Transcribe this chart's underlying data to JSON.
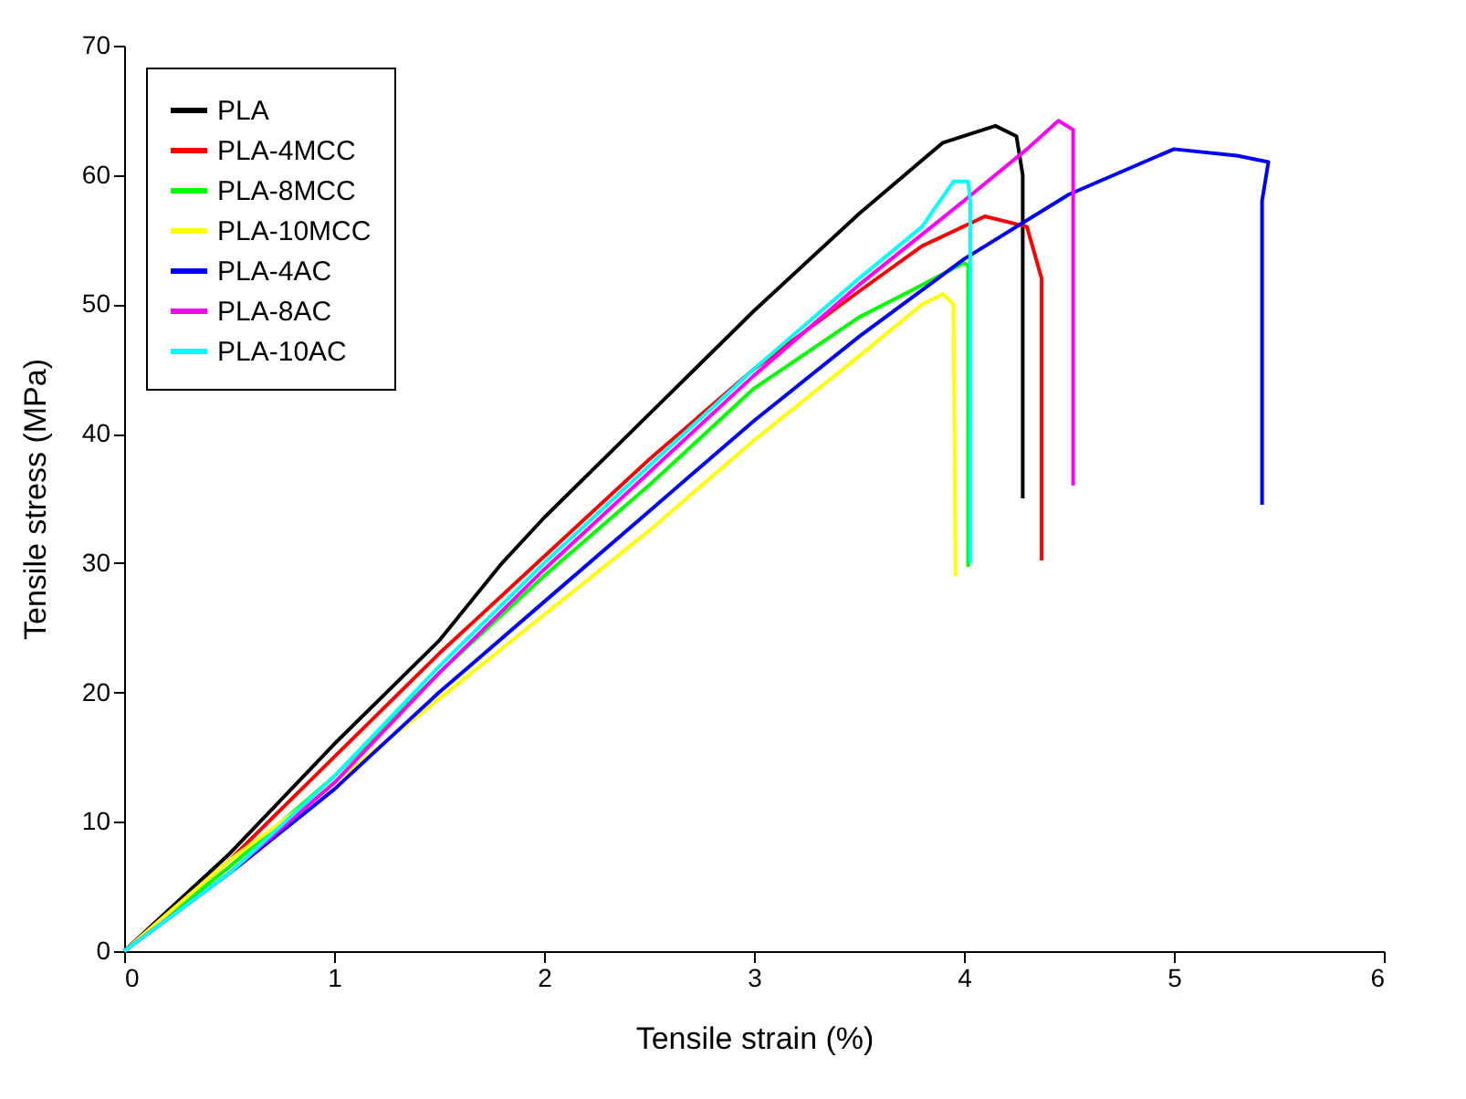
{
  "chart_data": {
    "type": "line",
    "xlabel": "Tensile strain (%)",
    "ylabel": "Tensile stress (MPa)",
    "xlim": [
      0,
      6
    ],
    "ylim": [
      0,
      70
    ],
    "xticks": [
      0,
      1,
      2,
      3,
      4,
      5,
      6
    ],
    "yticks": [
      0,
      10,
      20,
      30,
      40,
      50,
      60,
      70
    ],
    "grid": false,
    "legend": "top left",
    "marker": "none",
    "line_style": "solid",
    "series": [
      {
        "name": "PLA",
        "color": "#000000",
        "x": [
          0,
          0.5,
          1,
          1.5,
          1.8,
          2,
          2.5,
          3,
          3.5,
          3.9,
          4.15,
          4.25,
          4.28,
          4.28
        ],
        "values": [
          0,
          7.5,
          16,
          24,
          30,
          33.5,
          41.5,
          49.5,
          57,
          62.5,
          63.8,
          63,
          60,
          35
        ]
      },
      {
        "name": "PLA-4MCC",
        "color": "#ff0000",
        "x": [
          0,
          0.5,
          1,
          1.5,
          2,
          2.5,
          3,
          3.5,
          3.8,
          4.1,
          4.3,
          4.37,
          4.37
        ],
        "values": [
          0,
          7,
          15,
          23,
          30.5,
          38,
          45,
          51,
          54.5,
          56.8,
          56,
          52,
          30.2
        ]
      },
      {
        "name": "PLA-8MCC",
        "color": "#00ff00",
        "x": [
          0,
          0.5,
          1,
          1.5,
          2,
          2.5,
          3,
          3.5,
          3.8,
          4,
          4.02,
          4.02
        ],
        "values": [
          0,
          6.5,
          13.5,
          21.5,
          29,
          36,
          43.5,
          49,
          51.5,
          53.2,
          53,
          29.7
        ]
      },
      {
        "name": "PLA-10MCC",
        "color": "#ffff00",
        "x": [
          0,
          0.5,
          1,
          1.5,
          2,
          2.5,
          3,
          3.5,
          3.8,
          3.9,
          3.95,
          3.96
        ],
        "values": [
          0,
          7,
          13,
          19.5,
          26,
          32.5,
          39.5,
          46,
          50,
          50.8,
          50,
          29
        ]
      },
      {
        "name": "PLA-4AC",
        "color": "#0000ff",
        "x": [
          0,
          0.5,
          1,
          1.5,
          2,
          2.5,
          3,
          3.5,
          4,
          4.5,
          5,
          5.3,
          5.45,
          5.42,
          5.42
        ],
        "values": [
          0,
          6,
          12.5,
          20,
          27,
          34,
          41,
          47.5,
          53.5,
          58.5,
          62,
          61.5,
          61,
          58,
          34.5
        ]
      },
      {
        "name": "PLA-8AC",
        "color": "#ff00ff",
        "x": [
          0,
          0.5,
          1,
          1.5,
          2,
          2.5,
          3,
          3.5,
          4,
          4.3,
          4.45,
          4.52,
          4.52
        ],
        "values": [
          0,
          6,
          13,
          21.5,
          29.5,
          37,
          44.5,
          51.5,
          58,
          62,
          64.2,
          63.5,
          36
        ]
      },
      {
        "name": "PLA-10AC",
        "color": "#00ffff",
        "x": [
          0,
          0.5,
          1,
          1.5,
          2,
          2.5,
          3,
          3.5,
          3.8,
          3.95,
          4.02,
          4.03,
          4.03
        ],
        "values": [
          0,
          6,
          13.5,
          22,
          30,
          37.5,
          45,
          52,
          56,
          59.5,
          59.5,
          58,
          30
        ]
      }
    ]
  }
}
